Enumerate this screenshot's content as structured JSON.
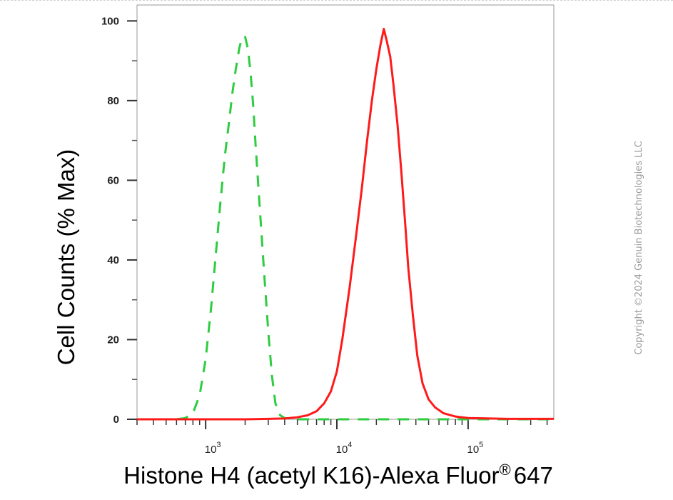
{
  "chart_data": {
    "type": "line",
    "xlabel": "Histone H4 (acetyl K16)-Alexa Fluor",
    "xlabel_superscript": "®",
    "xlabel_suffix": "647",
    "ylabel": "Cell Counts (% Max)",
    "x_scale": "log",
    "xlim": [
      300,
      450000
    ],
    "ylim": [
      0,
      104
    ],
    "y_ticks": [
      0,
      20,
      40,
      60,
      80,
      100
    ],
    "x_major_ticks": [
      {
        "value": 1000,
        "base": "10",
        "exp": "3"
      },
      {
        "value": 10000,
        "base": "10",
        "exp": "4"
      },
      {
        "value": 100000,
        "base": "10",
        "exp": "5"
      }
    ],
    "grid": false,
    "legend": null,
    "series": [
      {
        "color": "#2ecc40",
        "style": "dashed",
        "points": [
          [
            300,
            0
          ],
          [
            600,
            0
          ],
          [
            700,
            0.3
          ],
          [
            800,
            1.5
          ],
          [
            900,
            6
          ],
          [
            1000,
            15
          ],
          [
            1100,
            28
          ],
          [
            1200,
            42
          ],
          [
            1300,
            55
          ],
          [
            1400,
            66
          ],
          [
            1500,
            74
          ],
          [
            1600,
            82
          ],
          [
            1700,
            88
          ],
          [
            1800,
            93
          ],
          [
            1900,
            96
          ],
          [
            2000,
            96
          ],
          [
            2100,
            93
          ],
          [
            2200,
            87
          ],
          [
            2300,
            79
          ],
          [
            2400,
            69
          ],
          [
            2600,
            52
          ],
          [
            2800,
            36
          ],
          [
            3000,
            22
          ],
          [
            3200,
            11
          ],
          [
            3400,
            4
          ],
          [
            3700,
            1
          ],
          [
            4000,
            0.3
          ],
          [
            5000,
            0
          ],
          [
            450000,
            0
          ]
        ]
      },
      {
        "color": "#ff1a1a",
        "style": "solid",
        "points": [
          [
            300,
            0
          ],
          [
            2000,
            0
          ],
          [
            3000,
            0.1
          ],
          [
            4000,
            0.2
          ],
          [
            5000,
            0.5
          ],
          [
            6000,
            1
          ],
          [
            7000,
            2
          ],
          [
            8000,
            4
          ],
          [
            9000,
            7
          ],
          [
            10000,
            12
          ],
          [
            11000,
            20
          ],
          [
            12500,
            33
          ],
          [
            14000,
            46
          ],
          [
            15500,
            58
          ],
          [
            17000,
            70
          ],
          [
            18500,
            80
          ],
          [
            20000,
            88
          ],
          [
            21500,
            94
          ],
          [
            22800,
            98
          ],
          [
            24000,
            95
          ],
          [
            25500,
            91
          ],
          [
            27000,
            84
          ],
          [
            29000,
            74
          ],
          [
            31000,
            62
          ],
          [
            33000,
            50
          ],
          [
            35000,
            38
          ],
          [
            38000,
            26
          ],
          [
            41000,
            16
          ],
          [
            45000,
            9
          ],
          [
            50000,
            5
          ],
          [
            56000,
            3
          ],
          [
            65000,
            1.5
          ],
          [
            80000,
            0.7
          ],
          [
            100000,
            0.3
          ],
          [
            200000,
            0.1
          ],
          [
            450000,
            0.1
          ]
        ]
      }
    ]
  },
  "copyright": "Copyright ©2024 Genuin Biotechnologies LLC"
}
